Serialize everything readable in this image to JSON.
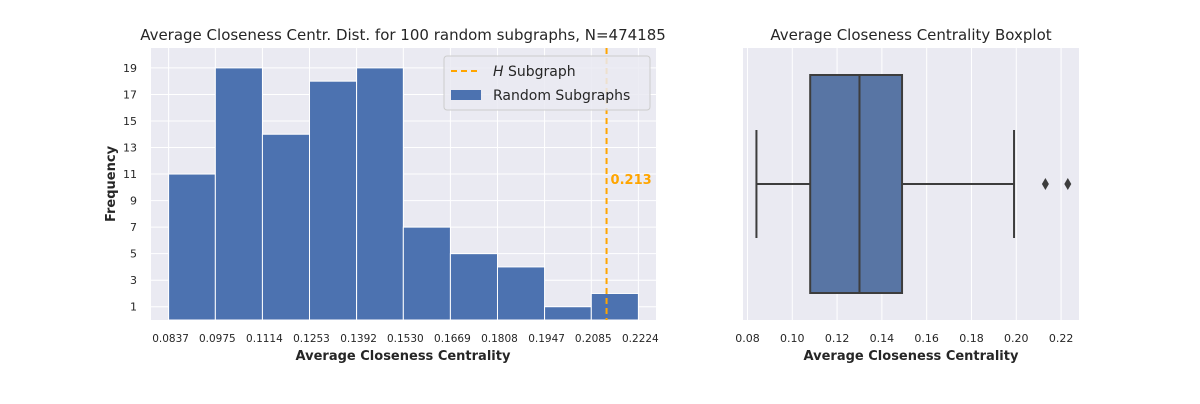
{
  "chart_data": [
    {
      "type": "bar",
      "title": "Average Closeness Centr. Dist. for 100 random subgraphs, N=474185",
      "xlabel": "Average Closeness Centrality",
      "ylabel": "Frequency",
      "x_ticks": [
        "0.0837",
        "0.0975",
        "0.1114",
        "0.1253",
        "0.1392",
        "0.1530",
        "0.1669",
        "0.1808",
        "0.1947",
        "0.2085",
        "0.2224"
      ],
      "y_ticks": [
        1,
        3,
        5,
        7,
        9,
        11,
        13,
        15,
        17,
        19
      ],
      "bin_edges": [
        0.0837,
        0.0975,
        0.1114,
        0.1253,
        0.1392,
        0.153,
        0.1669,
        0.1808,
        0.1947,
        0.2085,
        0.2224
      ],
      "values": [
        11,
        19,
        14,
        18,
        19,
        7,
        5,
        4,
        1,
        2
      ],
      "series": [
        {
          "name": "Random Subgraphs",
          "values": [
            11,
            19,
            14,
            18,
            19,
            7,
            5,
            4,
            1,
            2
          ],
          "color": "#4c72b0"
        }
      ],
      "reference_line": {
        "label_prefix": "H",
        "label_suffix": " Subgraph",
        "x": 0.213,
        "value_label": "0.213",
        "color": "#ffa500"
      },
      "ylim": [
        0,
        20.5
      ],
      "legend": "top-right",
      "grid": true
    },
    {
      "type": "boxplot",
      "title": "Average Closeness Centrality Boxplot",
      "xlabel": "Average Closeness Centrality",
      "ylabel": "",
      "x_ticks": [
        "0.08",
        "0.10",
        "0.12",
        "0.14",
        "0.16",
        "0.18",
        "0.20",
        "0.22"
      ],
      "xlim": [
        0.078,
        0.228
      ],
      "box": {
        "whisker_low": 0.084,
        "q1": 0.108,
        "median": 0.13,
        "q3": 0.149,
        "whisker_high": 0.199
      },
      "outliers": [
        0.213,
        0.223
      ],
      "color": "#5875a4",
      "grid": true
    }
  ]
}
